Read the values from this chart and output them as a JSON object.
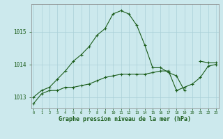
{
  "xlabel": "Graphe pression niveau de la mer (hPa)",
  "background_color": "#cce9ed",
  "grid_color": "#aad0d8",
  "line_color": "#1a5c1a",
  "hours": [
    0,
    1,
    2,
    3,
    4,
    5,
    6,
    7,
    8,
    9,
    10,
    11,
    12,
    13,
    14,
    15,
    16,
    17,
    18,
    19,
    20,
    21,
    22,
    23
  ],
  "series": [
    [
      1012.8,
      1013.1,
      1013.2,
      1013.2,
      1013.3,
      1013.3,
      1013.35,
      1013.4,
      1013.5,
      1013.6,
      1013.65,
      1013.7,
      1013.7,
      1013.7,
      1013.7,
      1013.75,
      1013.8,
      1013.8,
      1013.2,
      null,
      null,
      null,
      null,
      null
    ],
    [
      null,
      null,
      null,
      null,
      null,
      null,
      null,
      null,
      null,
      null,
      null,
      null,
      null,
      null,
      null,
      null,
      null,
      null,
      1013.2,
      1013.3,
      1013.4,
      1013.6,
      1013.95,
      1014.0
    ],
    [
      1013.0,
      1013.2,
      1013.3,
      1013.55,
      1013.8,
      1014.1,
      1014.3,
      1014.55,
      1014.9,
      1015.1,
      1015.55,
      1015.65,
      1015.55,
      1015.2,
      1014.6,
      1013.9,
      1013.9,
      1013.75,
      1013.65,
      1013.2,
      null,
      null,
      null,
      null
    ],
    [
      null,
      null,
      null,
      null,
      null,
      null,
      null,
      null,
      null,
      null,
      null,
      null,
      null,
      null,
      null,
      null,
      null,
      null,
      null,
      null,
      null,
      1014.1,
      1014.05,
      1014.05
    ]
  ],
  "ylim": [
    1012.65,
    1015.85
  ],
  "yticks": [
    1013,
    1014,
    1015
  ],
  "xlim": [
    -0.3,
    23.3
  ]
}
